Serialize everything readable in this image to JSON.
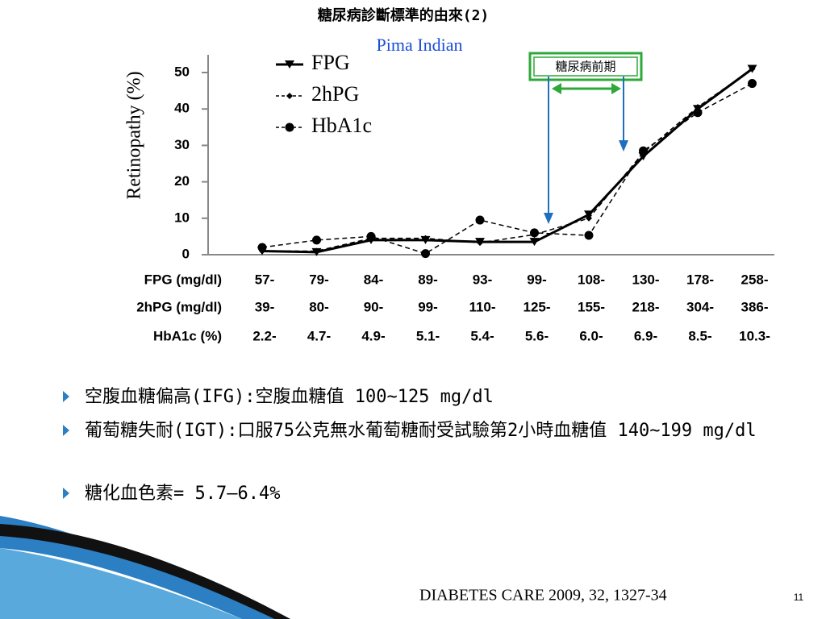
{
  "slide_title": "糖尿病診斷標準的由來(2)",
  "chart_data": {
    "type": "line",
    "subtitle": "Pima Indian",
    "ylabel": "Retinopathy (%)",
    "categories_name": "FPG (mg/dl)",
    "categories": [
      "57-",
      "79-",
      "84-",
      "89-",
      "93-",
      "99-",
      "108-",
      "130-",
      "178-",
      "258-"
    ],
    "extra_category_rows": [
      {
        "name": "2hPG (mg/dl)",
        "labels": [
          "39-",
          "80-",
          "90-",
          "99-",
          "110-",
          "125-",
          "155-",
          "218-",
          "304-",
          "386-"
        ]
      },
      {
        "name": "HbA1c (%)",
        "labels": [
          "2.2-",
          "4.7-",
          "4.9-",
          "5.1-",
          "5.4-",
          "5.6-",
          "6.0-",
          "6.9-",
          "8.5-",
          "10.3-"
        ]
      }
    ],
    "series": [
      {
        "name": "FPG",
        "color": "#000000",
        "line_style": "solid",
        "marker": "triangle",
        "values": [
          1,
          0.7,
          4,
          4,
          3.5,
          3.5,
          11,
          27,
          40,
          51
        ]
      },
      {
        "name": "2hPG",
        "color": "#000000",
        "line_style": "dashed",
        "marker": "diamond",
        "values": [
          1,
          1,
          4.5,
          4.5,
          3.3,
          5.5,
          10,
          28,
          40.5,
          51
        ]
      },
      {
        "name": "HbA1c",
        "color": "#000000",
        "line_style": "dashed",
        "marker": "circle",
        "values": [
          2,
          4,
          5,
          0.3,
          9.5,
          6,
          5.3,
          28.5,
          39,
          47
        ]
      }
    ],
    "ylim": [
      0,
      55
    ],
    "yticks": [
      0,
      10,
      20,
      30,
      40,
      50
    ],
    "annotation": "糖尿病前期"
  },
  "bullets": [
    "空腹血糖偏高(IFG):空腹血糖值 100~125 mg/dl",
    "葡萄糖失耐(IGT):口服75公克無水葡萄糖耐受試驗第2小時血糖值 140~199 mg/dl",
    "糖化血色素= 5.7–6.4%"
  ],
  "citation": "DIABETES CARE 2009, 32, 1327-34",
  "page_number": "11"
}
